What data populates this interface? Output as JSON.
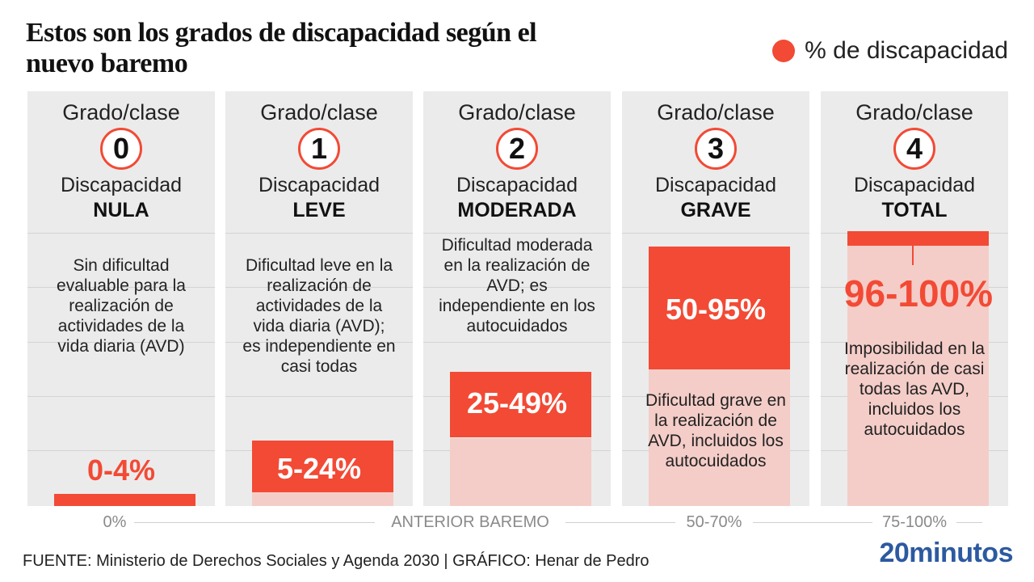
{
  "title": "Estos son los grados de discapacidad según el nuevo baremo",
  "legend": "% de discapacidad",
  "grado_label": "Grado/clase",
  "disc_label": "Discapacidad",
  "axis_title": "ANTERIOR BAREMO",
  "footer": "FUENTE: Ministerio de Derechos Sociales y Agenda 2030  |  GRÁFICO: Henar de Pedro",
  "brand": "20minutos",
  "colors": {
    "accent": "#f24a35",
    "range": "#f4cdc8",
    "panel": "#ebebeb"
  },
  "chart_data": {
    "type": "bar",
    "categories": [
      "0",
      "1",
      "2",
      "3",
      "4"
    ],
    "levels": [
      "NULA",
      "LEVE",
      "MODERADA",
      "GRAVE",
      "TOTAL"
    ],
    "ranges_new": [
      [
        0,
        4
      ],
      [
        5,
        24
      ],
      [
        25,
        49
      ],
      [
        50,
        95
      ],
      [
        96,
        100
      ]
    ],
    "range_labels": [
      "0-4%",
      "5-24%",
      "25-49%",
      "50-95%",
      "96-100%"
    ],
    "previous_labels": [
      "0%",
      "",
      "",
      "50-70%",
      "75-100%"
    ],
    "descriptions": [
      "Sin dificultad evaluable para la realización de actividades de la vida diaria (AVD)",
      "Dificultad leve en la realización de actividades de la vida diaria (AVD); es independiente en casi todas",
      "Dificultad moderada en la realización de AVD; es independiente en los autocuidados",
      "Dificultad grave en la realización de AVD, incluidos los autocuidados",
      "Imposibilidad en la realización de casi todas las AVD, incluidos los autocuidados"
    ],
    "ylim": [
      0,
      100
    ],
    "grid": true
  }
}
